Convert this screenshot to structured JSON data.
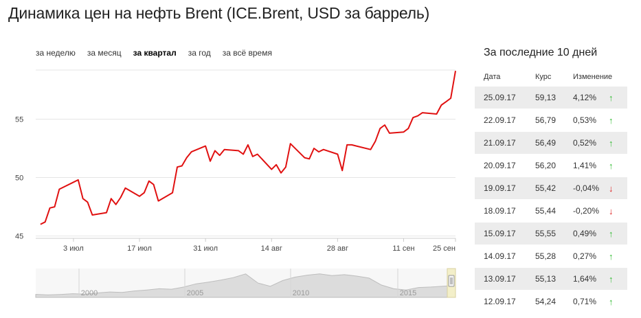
{
  "page": {
    "title": "Динамика цен на нефть Brent (ICE.Brent, USD за баррель)"
  },
  "period_tabs": [
    {
      "label": "за неделю",
      "active": false
    },
    {
      "label": "за месяц",
      "active": false
    },
    {
      "label": "за квартал",
      "active": true
    },
    {
      "label": "за год",
      "active": false
    },
    {
      "label": "за всё время",
      "active": false
    }
  ],
  "colors": {
    "line": "#e01010",
    "grid": "#e5e5e5",
    "arrow_up": "#33bb33",
    "arrow_down": "#dd2222",
    "row_shade": "#ececec"
  },
  "chart_data": {
    "type": "line",
    "title": "",
    "xlabel": "",
    "ylabel": "",
    "grid": true,
    "ylim": [
      44.8,
      59.2
    ],
    "y_ticks": [
      45,
      50,
      55
    ],
    "x_tick_labels": [
      "3 июл",
      "17 июл",
      "31 июл",
      "14 авг",
      "28 авг",
      "11 сен",
      "25 сен"
    ],
    "series": [
      {
        "values": [
          [
            1,
            46.0
          ],
          [
            2,
            46.2
          ],
          [
            3,
            47.4
          ],
          [
            4,
            47.5
          ],
          [
            5,
            49.0
          ],
          [
            8,
            49.6
          ],
          [
            9,
            49.8
          ],
          [
            10,
            48.2
          ],
          [
            11,
            47.9
          ],
          [
            12,
            46.8
          ],
          [
            15,
            47.0
          ],
          [
            16,
            48.2
          ],
          [
            17,
            47.7
          ],
          [
            18,
            48.3
          ],
          [
            19,
            49.1
          ],
          [
            22,
            48.4
          ],
          [
            23,
            48.7
          ],
          [
            24,
            49.7
          ],
          [
            25,
            49.4
          ],
          [
            26,
            48.0
          ],
          [
            29,
            48.7
          ],
          [
            30,
            50.9
          ],
          [
            31,
            51.0
          ],
          [
            32,
            51.7
          ],
          [
            33,
            52.2
          ],
          [
            36,
            52.7
          ],
          [
            37,
            51.4
          ],
          [
            38,
            52.3
          ],
          [
            39,
            51.9
          ],
          [
            40,
            52.4
          ],
          [
            43,
            52.3
          ],
          [
            44,
            52.0
          ],
          [
            45,
            52.8
          ],
          [
            46,
            51.8
          ],
          [
            47,
            52.0
          ],
          [
            50,
            50.7
          ],
          [
            51,
            51.1
          ],
          [
            52,
            50.4
          ],
          [
            53,
            50.9
          ],
          [
            54,
            52.9
          ],
          [
            57,
            51.7
          ],
          [
            58,
            51.6
          ],
          [
            59,
            52.5
          ],
          [
            60,
            52.2
          ],
          [
            61,
            52.4
          ],
          [
            64,
            52.0
          ],
          [
            65,
            50.6
          ],
          [
            66,
            52.8
          ],
          [
            67,
            52.8
          ],
          [
            68,
            52.7
          ],
          [
            71,
            52.4
          ],
          [
            72,
            53.1
          ],
          [
            73,
            54.2
          ],
          [
            74,
            54.5
          ],
          [
            75,
            53.8
          ],
          [
            78,
            53.9
          ],
          [
            79,
            54.2
          ],
          [
            80,
            55.13
          ],
          [
            81,
            55.28
          ],
          [
            82,
            55.55
          ],
          [
            85,
            55.44
          ],
          [
            86,
            56.2
          ],
          [
            87,
            56.49
          ],
          [
            88,
            56.79
          ],
          [
            89,
            59.13
          ]
        ]
      }
    ]
  },
  "navigator": {
    "year_labels": [
      "2000",
      "2005",
      "2010",
      "2015"
    ]
  },
  "table": {
    "title": "За последние 10 дней",
    "headers": {
      "date": "Дата",
      "rate": "Курс",
      "change": "Изменение"
    },
    "rows": [
      {
        "date": "25.09.17",
        "rate": "59,13",
        "change": "4,12%",
        "dir": "up"
      },
      {
        "date": "22.09.17",
        "rate": "56,79",
        "change": "0,53%",
        "dir": "up"
      },
      {
        "date": "21.09.17",
        "rate": "56,49",
        "change": "0,52%",
        "dir": "up"
      },
      {
        "date": "20.09.17",
        "rate": "56,20",
        "change": "1,41%",
        "dir": "up"
      },
      {
        "date": "19.09.17",
        "rate": "55,42",
        "change": "-0,04%",
        "dir": "down"
      },
      {
        "date": "18.09.17",
        "rate": "55,44",
        "change": "-0,20%",
        "dir": "down"
      },
      {
        "date": "15.09.17",
        "rate": "55,55",
        "change": "0,49%",
        "dir": "up"
      },
      {
        "date": "14.09.17",
        "rate": "55,28",
        "change": "0,27%",
        "dir": "up"
      },
      {
        "date": "13.09.17",
        "rate": "55,13",
        "change": "1,64%",
        "dir": "up"
      },
      {
        "date": "12.09.17",
        "rate": "54,24",
        "change": "0,71%",
        "dir": "up"
      }
    ]
  }
}
